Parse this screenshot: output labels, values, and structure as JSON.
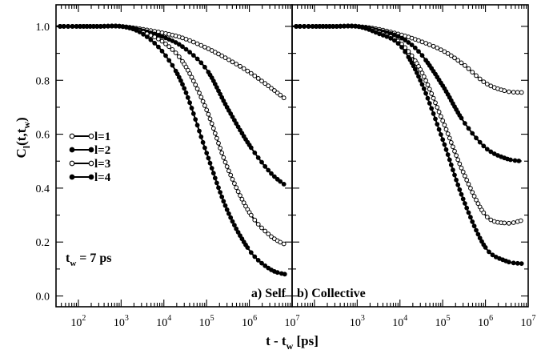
{
  "chart_data": [
    {
      "panel": "a",
      "type": "scatter",
      "label": "a) Self",
      "annotation_main": "t",
      "annotation_sub": "w",
      "annotation_rest": " = 7 ps",
      "x_scale": "log",
      "xlim": [
        30,
        10000000
      ],
      "ylim": [
        -0.04,
        1.08
      ],
      "x_ticks": [
        100,
        1000,
        10000,
        100000,
        1000000,
        10000000
      ],
      "x_tick_labels": [
        [
          "10",
          "2"
        ],
        [
          "10",
          "3"
        ],
        [
          "10",
          "4"
        ],
        [
          "10",
          "5"
        ],
        [
          "10",
          "6"
        ],
        [
          "10",
          "7"
        ]
      ],
      "y_ticks": [
        0.0,
        0.2,
        0.4,
        0.6,
        0.8,
        1.0
      ],
      "y_tick_labels": [
        "0.0",
        "0.2",
        "0.4",
        "0.6",
        "0.8",
        "1.0"
      ],
      "ylabel_main": "C",
      "ylabel_sub": "l",
      "ylabel_rest": "(t,t",
      "ylabel_sub2": "w",
      "ylabel_end": ")",
      "legend_position": "center-left",
      "series": [
        {
          "name": "l=1",
          "marker": "open-circle",
          "x": [
            30,
            100,
            300,
            1000,
            3000,
            10000,
            30000,
            100000,
            300000,
            1000000,
            3000000,
            7000000
          ],
          "y": [
            1.0,
            1.0,
            1.0,
            1.0,
            0.99,
            0.975,
            0.955,
            0.92,
            0.88,
            0.83,
            0.775,
            0.73
          ]
        },
        {
          "name": "l=2",
          "marker": "filled-circle",
          "x": [
            30,
            100,
            300,
            1000,
            3000,
            10000,
            30000,
            100000,
            300000,
            1000000,
            3000000,
            7000000
          ],
          "y": [
            1.0,
            1.0,
            1.0,
            1.0,
            0.985,
            0.96,
            0.92,
            0.84,
            0.7,
            0.56,
            0.46,
            0.41
          ]
        },
        {
          "name": "l=3",
          "marker": "open-circle",
          "x": [
            30,
            100,
            300,
            1000,
            3000,
            10000,
            30000,
            100000,
            300000,
            1000000,
            3000000,
            7000000
          ],
          "y": [
            1.0,
            1.0,
            1.0,
            1.0,
            0.98,
            0.94,
            0.86,
            0.69,
            0.48,
            0.31,
            0.225,
            0.19
          ]
        },
        {
          "name": "l=4",
          "marker": "filled-circle",
          "x": [
            30,
            100,
            300,
            1000,
            3000,
            10000,
            30000,
            100000,
            300000,
            1000000,
            3000000,
            7000000
          ],
          "y": [
            1.0,
            1.0,
            1.0,
            1.0,
            0.975,
            0.9,
            0.77,
            0.53,
            0.32,
            0.17,
            0.1,
            0.08
          ]
        }
      ]
    },
    {
      "panel": "b",
      "type": "scatter",
      "label": "b) Collective",
      "x_scale": "log",
      "xlim": [
        30,
        10000000
      ],
      "ylim": [
        -0.04,
        1.08
      ],
      "x_ticks": [
        1000,
        10000,
        100000,
        1000000,
        10000000
      ],
      "x_tick_labels": [
        [
          "10",
          "3"
        ],
        [
          "10",
          "4"
        ],
        [
          "10",
          "5"
        ],
        [
          "10",
          "6"
        ],
        [
          "10",
          "7"
        ]
      ],
      "xlabel_main": "t - t",
      "xlabel_sub": "w",
      "xlabel_rest": " [ps]",
      "series": [
        {
          "name": "l=1",
          "marker": "open-circle",
          "x": [
            30,
            100,
            300,
            1000,
            3000,
            10000,
            30000,
            100000,
            300000,
            1000000,
            3000000,
            7000000
          ],
          "y": [
            1.0,
            1.0,
            1.0,
            1.0,
            0.99,
            0.97,
            0.945,
            0.91,
            0.86,
            0.79,
            0.76,
            0.755
          ]
        },
        {
          "name": "l=2",
          "marker": "filled-circle",
          "x": [
            30,
            100,
            300,
            1000,
            3000,
            10000,
            30000,
            100000,
            300000,
            1000000,
            3000000,
            7000000
          ],
          "y": [
            1.0,
            1.0,
            1.0,
            1.0,
            0.985,
            0.96,
            0.9,
            0.78,
            0.65,
            0.55,
            0.51,
            0.5
          ]
        },
        {
          "name": "l=3",
          "marker": "open-circle",
          "x": [
            30,
            100,
            300,
            1000,
            3000,
            10000,
            30000,
            100000,
            300000,
            1000000,
            3000000,
            7000000
          ],
          "y": [
            1.0,
            1.0,
            1.0,
            1.0,
            0.98,
            0.94,
            0.84,
            0.65,
            0.46,
            0.3,
            0.27,
            0.28
          ]
        },
        {
          "name": "l=4",
          "marker": "filled-circle",
          "x": [
            30,
            100,
            300,
            1000,
            3000,
            10000,
            30000,
            100000,
            300000,
            1000000,
            3000000,
            7000000
          ],
          "y": [
            1.0,
            1.0,
            1.0,
            1.0,
            0.975,
            0.93,
            0.8,
            0.58,
            0.36,
            0.18,
            0.13,
            0.12
          ]
        }
      ]
    }
  ]
}
